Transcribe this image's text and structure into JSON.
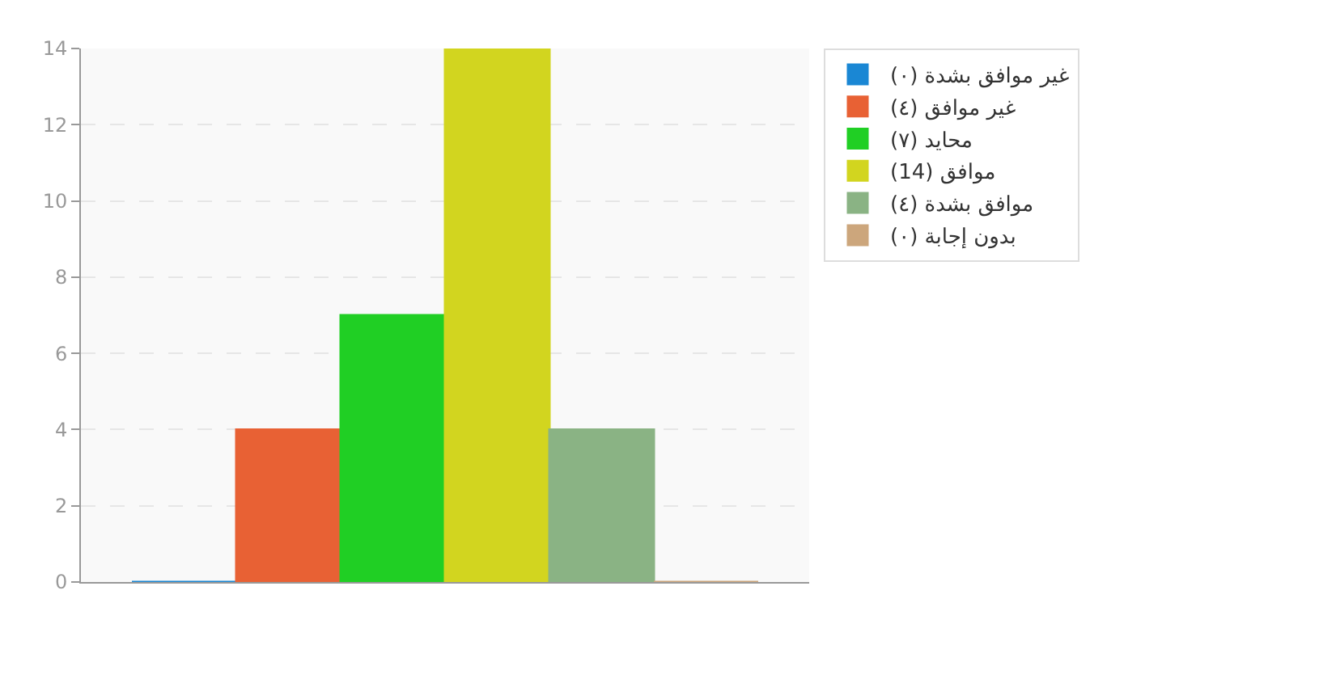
{
  "chart_data": {
    "type": "bar",
    "categories": [
      null
    ],
    "series": [
      {
        "name": "غير موافق بشدة (٠)",
        "color": "#1a87d4",
        "values": [
          0
        ]
      },
      {
        "name": "غير موافق (٤)",
        "color": "#e86134",
        "values": [
          4
        ]
      },
      {
        "name": "محايد (٧)",
        "color": "#20cf24",
        "values": [
          7
        ]
      },
      {
        "name": "موافق (14)",
        "color": "#d2d51f",
        "values": [
          14
        ]
      },
      {
        "name": "موافق بشدة (٤)",
        "color": "#8ab384",
        "values": [
          4
        ]
      },
      {
        "name": "بدون إجابة (٠)",
        "color": "#cca67c",
        "values": [
          0
        ]
      }
    ],
    "ylim": [
      0,
      14
    ],
    "yticks": [
      0,
      2,
      4,
      6,
      8,
      10,
      12,
      14
    ],
    "grid": "y",
    "legend": "top right"
  }
}
